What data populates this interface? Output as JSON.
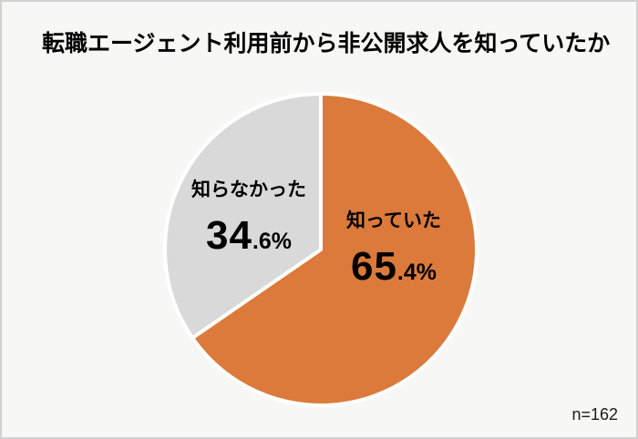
{
  "chart_data": {
    "type": "pie",
    "title": "転職エージェント利用前から非公開求人を知っていたか",
    "sample_size_label": "n=162",
    "slices": [
      {
        "label": "知っていた",
        "value": 65.4,
        "color": "#db7a3a"
      },
      {
        "label": "知らなかった",
        "value": 34.6,
        "color": "#d9d9d9"
      }
    ],
    "start_angle_deg": 0,
    "direction": "clockwise",
    "slice_border_color": "#ffffff",
    "label_color": "#000000",
    "legend": "none",
    "background_color": "#f7f7f5",
    "frame_border_color": "#d2d2d2"
  }
}
